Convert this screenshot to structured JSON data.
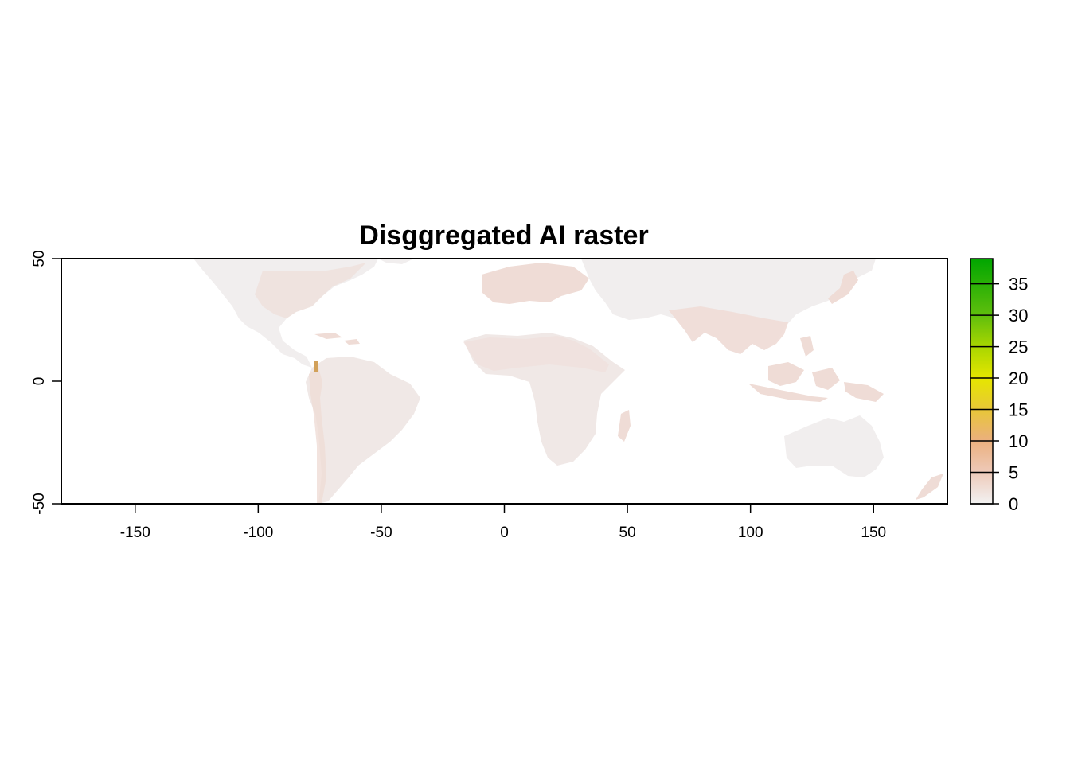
{
  "title": "Disggregated AI raster",
  "chart_data": {
    "type": "heatmap",
    "title": "Disggregated AI raster",
    "xlim": [
      -180,
      180
    ],
    "ylim": [
      -50,
      50
    ],
    "x_ticks": [
      -150,
      -100,
      -50,
      0,
      50,
      100,
      150
    ],
    "y_ticks": [
      -50,
      0,
      50
    ],
    "legend": {
      "placement": "right",
      "range": [
        0,
        39
      ],
      "ticks": [
        0,
        5,
        10,
        15,
        20,
        25,
        30,
        35
      ],
      "colors": [
        "#f2f2f2",
        "#eec9b8",
        "#ebb07d",
        "#e8c63a",
        "#e6e600",
        "#a9d600",
        "#5fbe0d",
        "#00a600"
      ]
    },
    "note_values": "Nearly all land cells fall in the 0-5 range (light pink/grey); small hotspot near Colombia/Ecuador around 5-15."
  }
}
